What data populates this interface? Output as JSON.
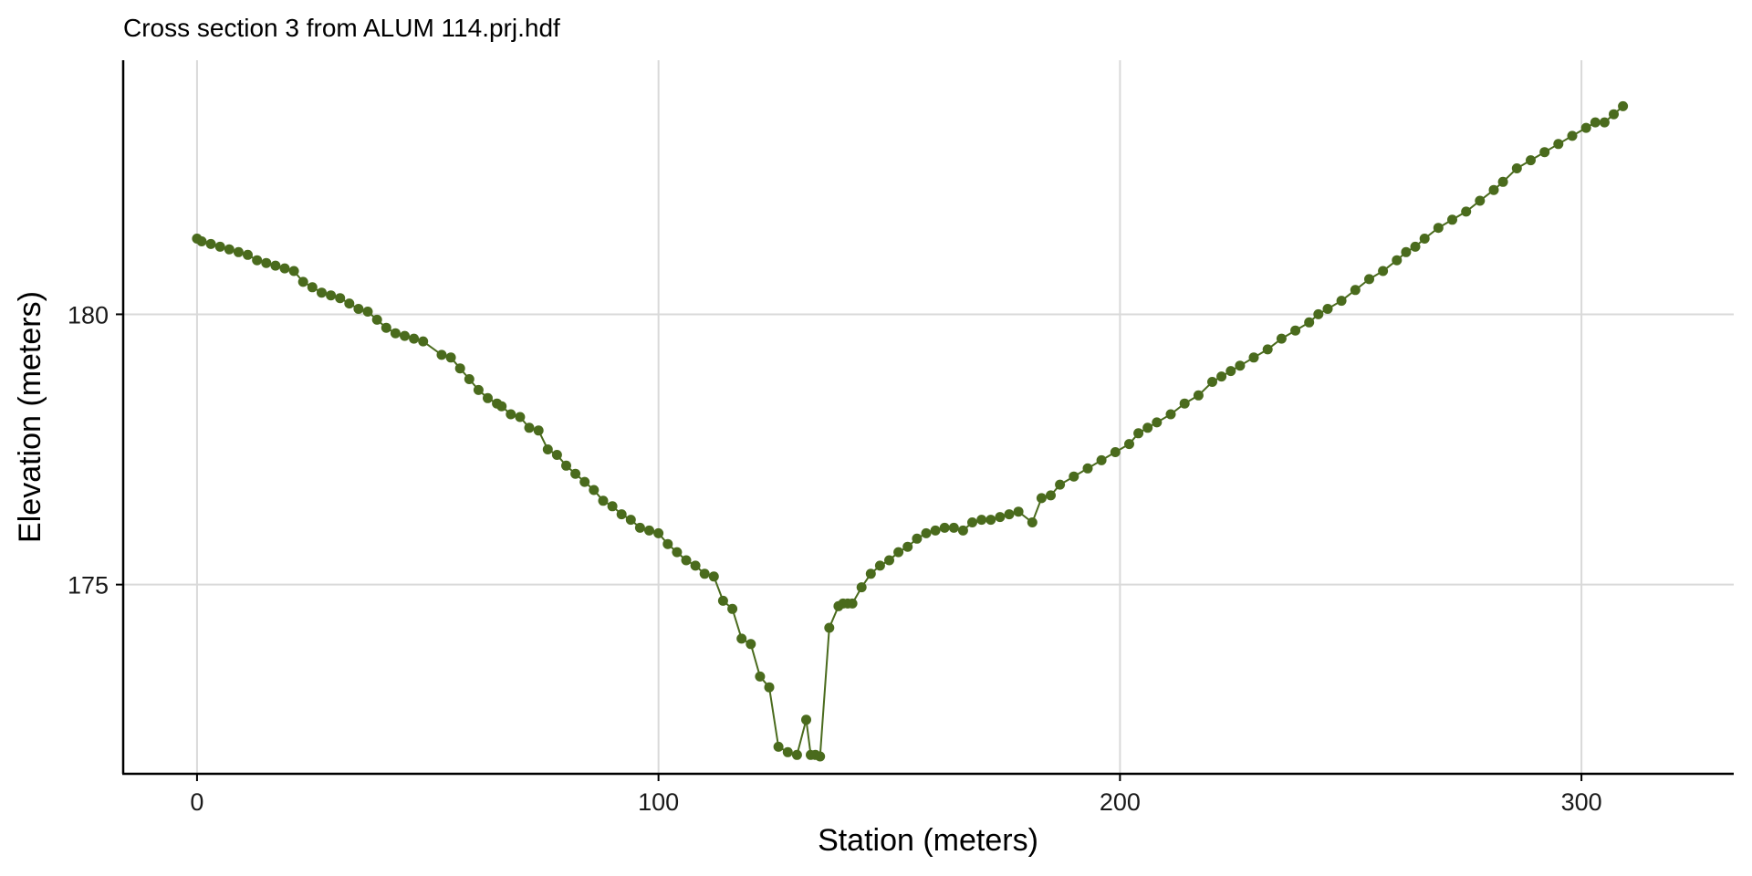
{
  "chart_data": {
    "type": "scatter",
    "title": "Cross section 3 from ALUM 114.prj.hdf",
    "xlabel": "Station (meters)",
    "ylabel": "Elevation (meters)",
    "xlim": [
      -16,
      333
    ],
    "ylim": [
      171.5,
      184.7
    ],
    "x_ticks": [
      0,
      100,
      200,
      300
    ],
    "y_ticks": [
      175,
      180
    ],
    "grid": true,
    "legend": "none",
    "colors": {
      "series": "#4a6b1d",
      "grid": "#d9d9d9",
      "axis": "#000000"
    },
    "series": [
      {
        "points": [
          [
            0,
            181.4
          ],
          [
            1,
            181.35
          ],
          [
            3,
            181.3
          ],
          [
            5,
            181.25
          ],
          [
            7,
            181.2
          ],
          [
            9,
            181.15
          ],
          [
            11,
            181.1
          ],
          [
            13,
            181.0
          ],
          [
            15,
            180.95
          ],
          [
            17,
            180.9
          ],
          [
            19,
            180.85
          ],
          [
            21,
            180.8
          ],
          [
            23,
            180.6
          ],
          [
            25,
            180.5
          ],
          [
            27,
            180.4
          ],
          [
            29,
            180.35
          ],
          [
            31,
            180.3
          ],
          [
            33,
            180.2
          ],
          [
            35,
            180.1
          ],
          [
            37,
            180.05
          ],
          [
            39,
            179.9
          ],
          [
            41,
            179.75
          ],
          [
            43,
            179.65
          ],
          [
            45,
            179.6
          ],
          [
            47,
            179.55
          ],
          [
            49,
            179.5
          ],
          [
            53,
            179.25
          ],
          [
            55,
            179.2
          ],
          [
            57,
            179.0
          ],
          [
            59,
            178.8
          ],
          [
            61,
            178.6
          ],
          [
            63,
            178.45
          ],
          [
            65,
            178.35
          ],
          [
            66,
            178.3
          ],
          [
            68,
            178.15
          ],
          [
            70,
            178.1
          ],
          [
            72,
            177.9
          ],
          [
            74,
            177.85
          ],
          [
            76,
            177.5
          ],
          [
            78,
            177.4
          ],
          [
            80,
            177.2
          ],
          [
            82,
            177.05
          ],
          [
            84,
            176.9
          ],
          [
            86,
            176.75
          ],
          [
            88,
            176.55
          ],
          [
            90,
            176.45
          ],
          [
            92,
            176.3
          ],
          [
            94,
            176.2
          ],
          [
            96,
            176.05
          ],
          [
            98,
            176.0
          ],
          [
            100,
            175.95
          ],
          [
            102,
            175.75
          ],
          [
            104,
            175.6
          ],
          [
            106,
            175.45
          ],
          [
            108,
            175.35
          ],
          [
            110,
            175.2
          ],
          [
            112,
            175.15
          ],
          [
            114,
            174.7
          ],
          [
            116,
            174.55
          ],
          [
            118,
            174.0
          ],
          [
            120,
            173.9
          ],
          [
            122,
            173.3
          ],
          [
            124,
            173.1
          ],
          [
            126,
            172.0
          ],
          [
            128,
            171.9
          ],
          [
            130,
            171.85
          ],
          [
            132,
            172.5
          ],
          [
            133,
            171.85
          ],
          [
            134,
            171.85
          ],
          [
            135,
            171.82
          ],
          [
            137,
            174.2
          ],
          [
            139,
            174.6
          ],
          [
            140,
            174.65
          ],
          [
            141,
            174.65
          ],
          [
            142,
            174.65
          ],
          [
            144,
            174.95
          ],
          [
            146,
            175.2
          ],
          [
            148,
            175.35
          ],
          [
            150,
            175.45
          ],
          [
            152,
            175.6
          ],
          [
            154,
            175.7
          ],
          [
            156,
            175.85
          ],
          [
            158,
            175.95
          ],
          [
            160,
            176.0
          ],
          [
            162,
            176.05
          ],
          [
            164,
            176.05
          ],
          [
            166,
            176.0
          ],
          [
            168,
            176.15
          ],
          [
            170,
            176.2
          ],
          [
            172,
            176.2
          ],
          [
            174,
            176.25
          ],
          [
            176,
            176.3
          ],
          [
            178,
            176.35
          ],
          [
            181,
            176.15
          ],
          [
            183,
            176.6
          ],
          [
            185,
            176.65
          ],
          [
            187,
            176.85
          ],
          [
            190,
            177.0
          ],
          [
            193,
            177.15
          ],
          [
            196,
            177.3
          ],
          [
            199,
            177.45
          ],
          [
            202,
            177.6
          ],
          [
            204,
            177.8
          ],
          [
            206,
            177.9
          ],
          [
            208,
            178.0
          ],
          [
            211,
            178.15
          ],
          [
            214,
            178.35
          ],
          [
            217,
            178.5
          ],
          [
            220,
            178.75
          ],
          [
            222,
            178.85
          ],
          [
            224,
            178.95
          ],
          [
            226,
            179.05
          ],
          [
            229,
            179.2
          ],
          [
            232,
            179.35
          ],
          [
            235,
            179.55
          ],
          [
            238,
            179.7
          ],
          [
            241,
            179.85
          ],
          [
            243,
            180.0
          ],
          [
            245,
            180.1
          ],
          [
            248,
            180.25
          ],
          [
            251,
            180.45
          ],
          [
            254,
            180.65
          ],
          [
            257,
            180.8
          ],
          [
            260,
            181.0
          ],
          [
            262,
            181.15
          ],
          [
            264,
            181.25
          ],
          [
            266,
            181.4
          ],
          [
            269,
            181.6
          ],
          [
            272,
            181.75
          ],
          [
            275,
            181.9
          ],
          [
            278,
            182.1
          ],
          [
            281,
            182.3
          ],
          [
            283,
            182.45
          ],
          [
            286,
            182.7
          ],
          [
            289,
            182.85
          ],
          [
            292,
            183.0
          ],
          [
            295,
            183.15
          ],
          [
            298,
            183.3
          ],
          [
            301,
            183.45
          ],
          [
            303,
            183.55
          ],
          [
            305,
            183.55
          ],
          [
            307,
            183.7
          ],
          [
            309,
            183.85
          ]
        ]
      }
    ]
  }
}
